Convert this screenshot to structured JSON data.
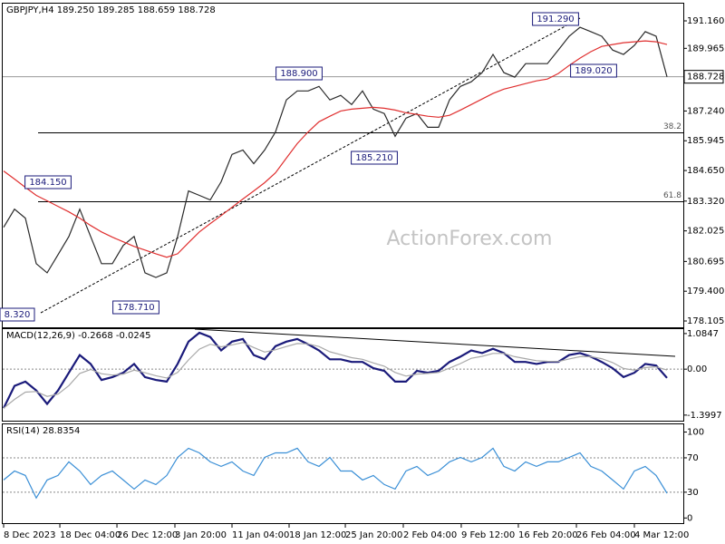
{
  "chart_data": [
    {
      "type": "line",
      "title": "GBPJPY,H4  189.250 189.285 188.659 188.728",
      "watermark": "ActionForex.com",
      "x": [
        0,
        1,
        2,
        3,
        4,
        5,
        6,
        7,
        8,
        9,
        10,
        11,
        12,
        13,
        14,
        15,
        16,
        17,
        18,
        19,
        20,
        21,
        22,
        23,
        24,
        25,
        26,
        27,
        28,
        29,
        30,
        31,
        32,
        33,
        34,
        35,
        36,
        37,
        38,
        39,
        40,
        41,
        42,
        43,
        44,
        45,
        46,
        47,
        48,
        49,
        50,
        51,
        52,
        53,
        54,
        55,
        56,
        57,
        58,
        59,
        60,
        61
      ],
      "xlim": [
        0,
        62
      ],
      "ylim": [
        177.83,
        191.91
      ],
      "grid": false,
      "yticks": [
        {
          "value": 191.16,
          "label": "191.160"
        },
        189.965,
        {
          "value": 187.24,
          "label": "187.240"
        },
        185.945,
        {
          "value": 184.65,
          "label": "184.650"
        },
        {
          "value": 183.32,
          "label": "183.320"
        },
        182.025,
        180.695,
        {
          "value": 179.4,
          "label": "179.400"
        },
        178.105
      ],
      "last_price": 188.728,
      "fib_levels": [
        {
          "value": 186.29,
          "label": "38.2"
        },
        {
          "value": 183.29,
          "label": "61.8"
        }
      ],
      "annotations": [
        "191.290",
        "189.020",
        "188.900",
        "185.210",
        "184.150",
        "178.710",
        "8.320"
      ],
      "series": [
        {
          "name": "Price",
          "color": "#2a2a2a",
          "values": [
            182.18,
            182.97,
            182.58,
            180.6,
            180.2,
            180.99,
            181.78,
            182.97,
            181.78,
            180.6,
            180.6,
            181.39,
            181.78,
            180.2,
            180.0,
            180.2,
            181.78,
            183.76,
            183.57,
            183.37,
            184.16,
            185.35,
            185.54,
            184.95,
            185.54,
            186.33,
            187.72,
            188.11,
            188.11,
            188.31,
            187.72,
            187.92,
            187.52,
            188.11,
            187.32,
            187.13,
            186.14,
            186.93,
            187.13,
            186.53,
            186.53,
            187.72,
            188.31,
            188.51,
            188.91,
            189.7,
            188.91,
            188.71,
            189.3,
            189.3,
            189.3,
            189.89,
            190.49,
            190.88,
            190.69,
            190.49,
            189.89,
            189.7,
            190.09,
            190.69,
            190.49,
            188.728
          ]
        },
        {
          "name": "MA",
          "color": "#e03030",
          "values": [
            184.63,
            184.28,
            183.92,
            183.57,
            183.33,
            183.09,
            182.85,
            182.58,
            182.26,
            181.98,
            181.75,
            181.55,
            181.35,
            181.19,
            181.03,
            180.88,
            181.03,
            181.51,
            181.98,
            182.34,
            182.69,
            183.05,
            183.41,
            183.76,
            184.12,
            184.55,
            185.19,
            185.82,
            186.33,
            186.77,
            187.01,
            187.24,
            187.32,
            187.36,
            187.4,
            187.36,
            187.28,
            187.16,
            187.09,
            187.01,
            186.97,
            187.05,
            187.28,
            187.52,
            187.76,
            188.0,
            188.19,
            188.31,
            188.43,
            188.55,
            188.63,
            188.87,
            189.22,
            189.54,
            189.82,
            190.05,
            190.13,
            190.21,
            190.25,
            190.29,
            190.25,
            190.13
          ]
        }
      ]
    },
    {
      "type": "line",
      "title": "MACD(12,26,9) -0.2668 -0.0245",
      "x": [
        0,
        1,
        2,
        3,
        4,
        5,
        6,
        7,
        8,
        9,
        10,
        11,
        12,
        13,
        14,
        15,
        16,
        17,
        18,
        19,
        20,
        21,
        22,
        23,
        24,
        25,
        26,
        27,
        28,
        29,
        30,
        31,
        32,
        33,
        34,
        35,
        36,
        37,
        38,
        39,
        40,
        41,
        42,
        43,
        44,
        45,
        46,
        47,
        48,
        49,
        50,
        51,
        52,
        53,
        54,
        55,
        56,
        57,
        58,
        59,
        60,
        61
      ],
      "xlim": [
        0,
        62
      ],
      "ylim": [
        -1.57,
        1.22
      ],
      "grid": true,
      "yticks": [
        1.0847,
        {
          "value": 0,
          "label": "0.00"
        },
        -1.3997
      ],
      "series": [
        {
          "name": "MACD",
          "color": "#1a1a7a",
          "values": [
            -1.19,
            -0.51,
            -0.38,
            -0.65,
            -1.06,
            -0.65,
            -0.11,
            0.43,
            0.16,
            -0.33,
            -0.24,
            -0.11,
            0.16,
            -0.24,
            -0.33,
            -0.38,
            0.16,
            0.84,
            1.11,
            0.98,
            0.57,
            0.84,
            0.92,
            0.43,
            0.3,
            0.7,
            0.84,
            0.92,
            0.76,
            0.57,
            0.3,
            0.3,
            0.22,
            0.22,
            0.03,
            -0.05,
            -0.38,
            -0.38,
            -0.05,
            -0.11,
            -0.05,
            0.22,
            0.38,
            0.57,
            0.49,
            0.62,
            0.49,
            0.22,
            0.22,
            0.16,
            0.22,
            0.22,
            0.43,
            0.49,
            0.38,
            0.22,
            0.03,
            -0.24,
            -0.11,
            0.16,
            0.11,
            -0.2668
          ]
        },
        {
          "name": "Signal",
          "color": "#a8a8a8",
          "values": [
            -1.19,
            -0.92,
            -0.7,
            -0.68,
            -0.83,
            -0.76,
            -0.5,
            -0.13,
            -0.01,
            -0.14,
            -0.18,
            -0.15,
            -0.03,
            -0.11,
            -0.2,
            -0.27,
            -0.1,
            0.28,
            0.61,
            0.76,
            0.68,
            0.74,
            0.81,
            0.66,
            0.52,
            0.59,
            0.69,
            0.78,
            0.77,
            0.69,
            0.53,
            0.44,
            0.35,
            0.3,
            0.19,
            0.09,
            -0.1,
            -0.21,
            -0.15,
            -0.13,
            -0.1,
            0.03,
            0.17,
            0.33,
            0.39,
            0.48,
            0.48,
            0.38,
            0.32,
            0.26,
            0.24,
            0.23,
            0.31,
            0.38,
            0.38,
            0.32,
            0.2,
            0.02,
            -0.03,
            0.05,
            0.07,
            -0.0245
          ]
        }
      ]
    },
    {
      "type": "line",
      "title": "RSI(14) 28.8354",
      "x": [
        0,
        1,
        2,
        3,
        4,
        5,
        6,
        7,
        8,
        9,
        10,
        11,
        12,
        13,
        14,
        15,
        16,
        17,
        18,
        19,
        20,
        21,
        22,
        23,
        24,
        25,
        26,
        27,
        28,
        29,
        30,
        31,
        32,
        33,
        34,
        35,
        36,
        37,
        38,
        39,
        40,
        41,
        42,
        43,
        44,
        45,
        46,
        47,
        48,
        49,
        50,
        51,
        52,
        53,
        54,
        55,
        56,
        57,
        58,
        59,
        60,
        61
      ],
      "xlim": [
        0,
        62
      ],
      "ylim": [
        -6,
        109
      ],
      "grid": true,
      "yticks": [
        0,
        30,
        70,
        100
      ],
      "xticks": [
        {
          "value": 0,
          "label": "8 Dec 2023"
        },
        {
          "value": 5.17,
          "label": "18 Dec 04:00"
        },
        {
          "value": 10.42,
          "label": "26 Dec 12:00"
        },
        {
          "value": 15.75,
          "label": "3 Jan 20:00"
        },
        {
          "value": 21,
          "label": "11 Jan 04:00"
        },
        {
          "value": 26.25,
          "label": "18 Jan 12:00"
        },
        {
          "value": 31.42,
          "label": "25 Jan 20:00"
        },
        {
          "value": 36.75,
          "label": "2 Feb 04:00"
        },
        {
          "value": 42.08,
          "label": "9 Feb 12:00"
        },
        {
          "value": 47.33,
          "label": "16 Feb 20:00"
        },
        {
          "value": 52.67,
          "label": "26 Feb 04:00"
        },
        {
          "value": 58,
          "label": "4 Mar 12:00"
        }
      ],
      "series": [
        {
          "name": "RSI",
          "color": "#3a8fd6",
          "values": [
            44.2,
            54.7,
            49.5,
            23.2,
            44.2,
            49.5,
            65.3,
            54.7,
            38.9,
            49.5,
            54.7,
            44.2,
            33.7,
            44.2,
            38.9,
            49.5,
            70.5,
            81.1,
            75.8,
            65.3,
            60.0,
            65.3,
            54.7,
            49.5,
            70.5,
            75.8,
            75.8,
            81.1,
            65.3,
            60.0,
            70.5,
            54.7,
            54.7,
            44.2,
            49.5,
            38.9,
            33.7,
            54.7,
            60.0,
            49.5,
            54.7,
            65.3,
            70.5,
            65.3,
            70.5,
            81.1,
            60.0,
            54.7,
            65.3,
            60.0,
            65.3,
            65.3,
            70.5,
            75.8,
            60.0,
            54.7,
            44.2,
            33.7,
            54.7,
            60.0,
            49.5,
            28.8354
          ]
        }
      ]
    }
  ]
}
